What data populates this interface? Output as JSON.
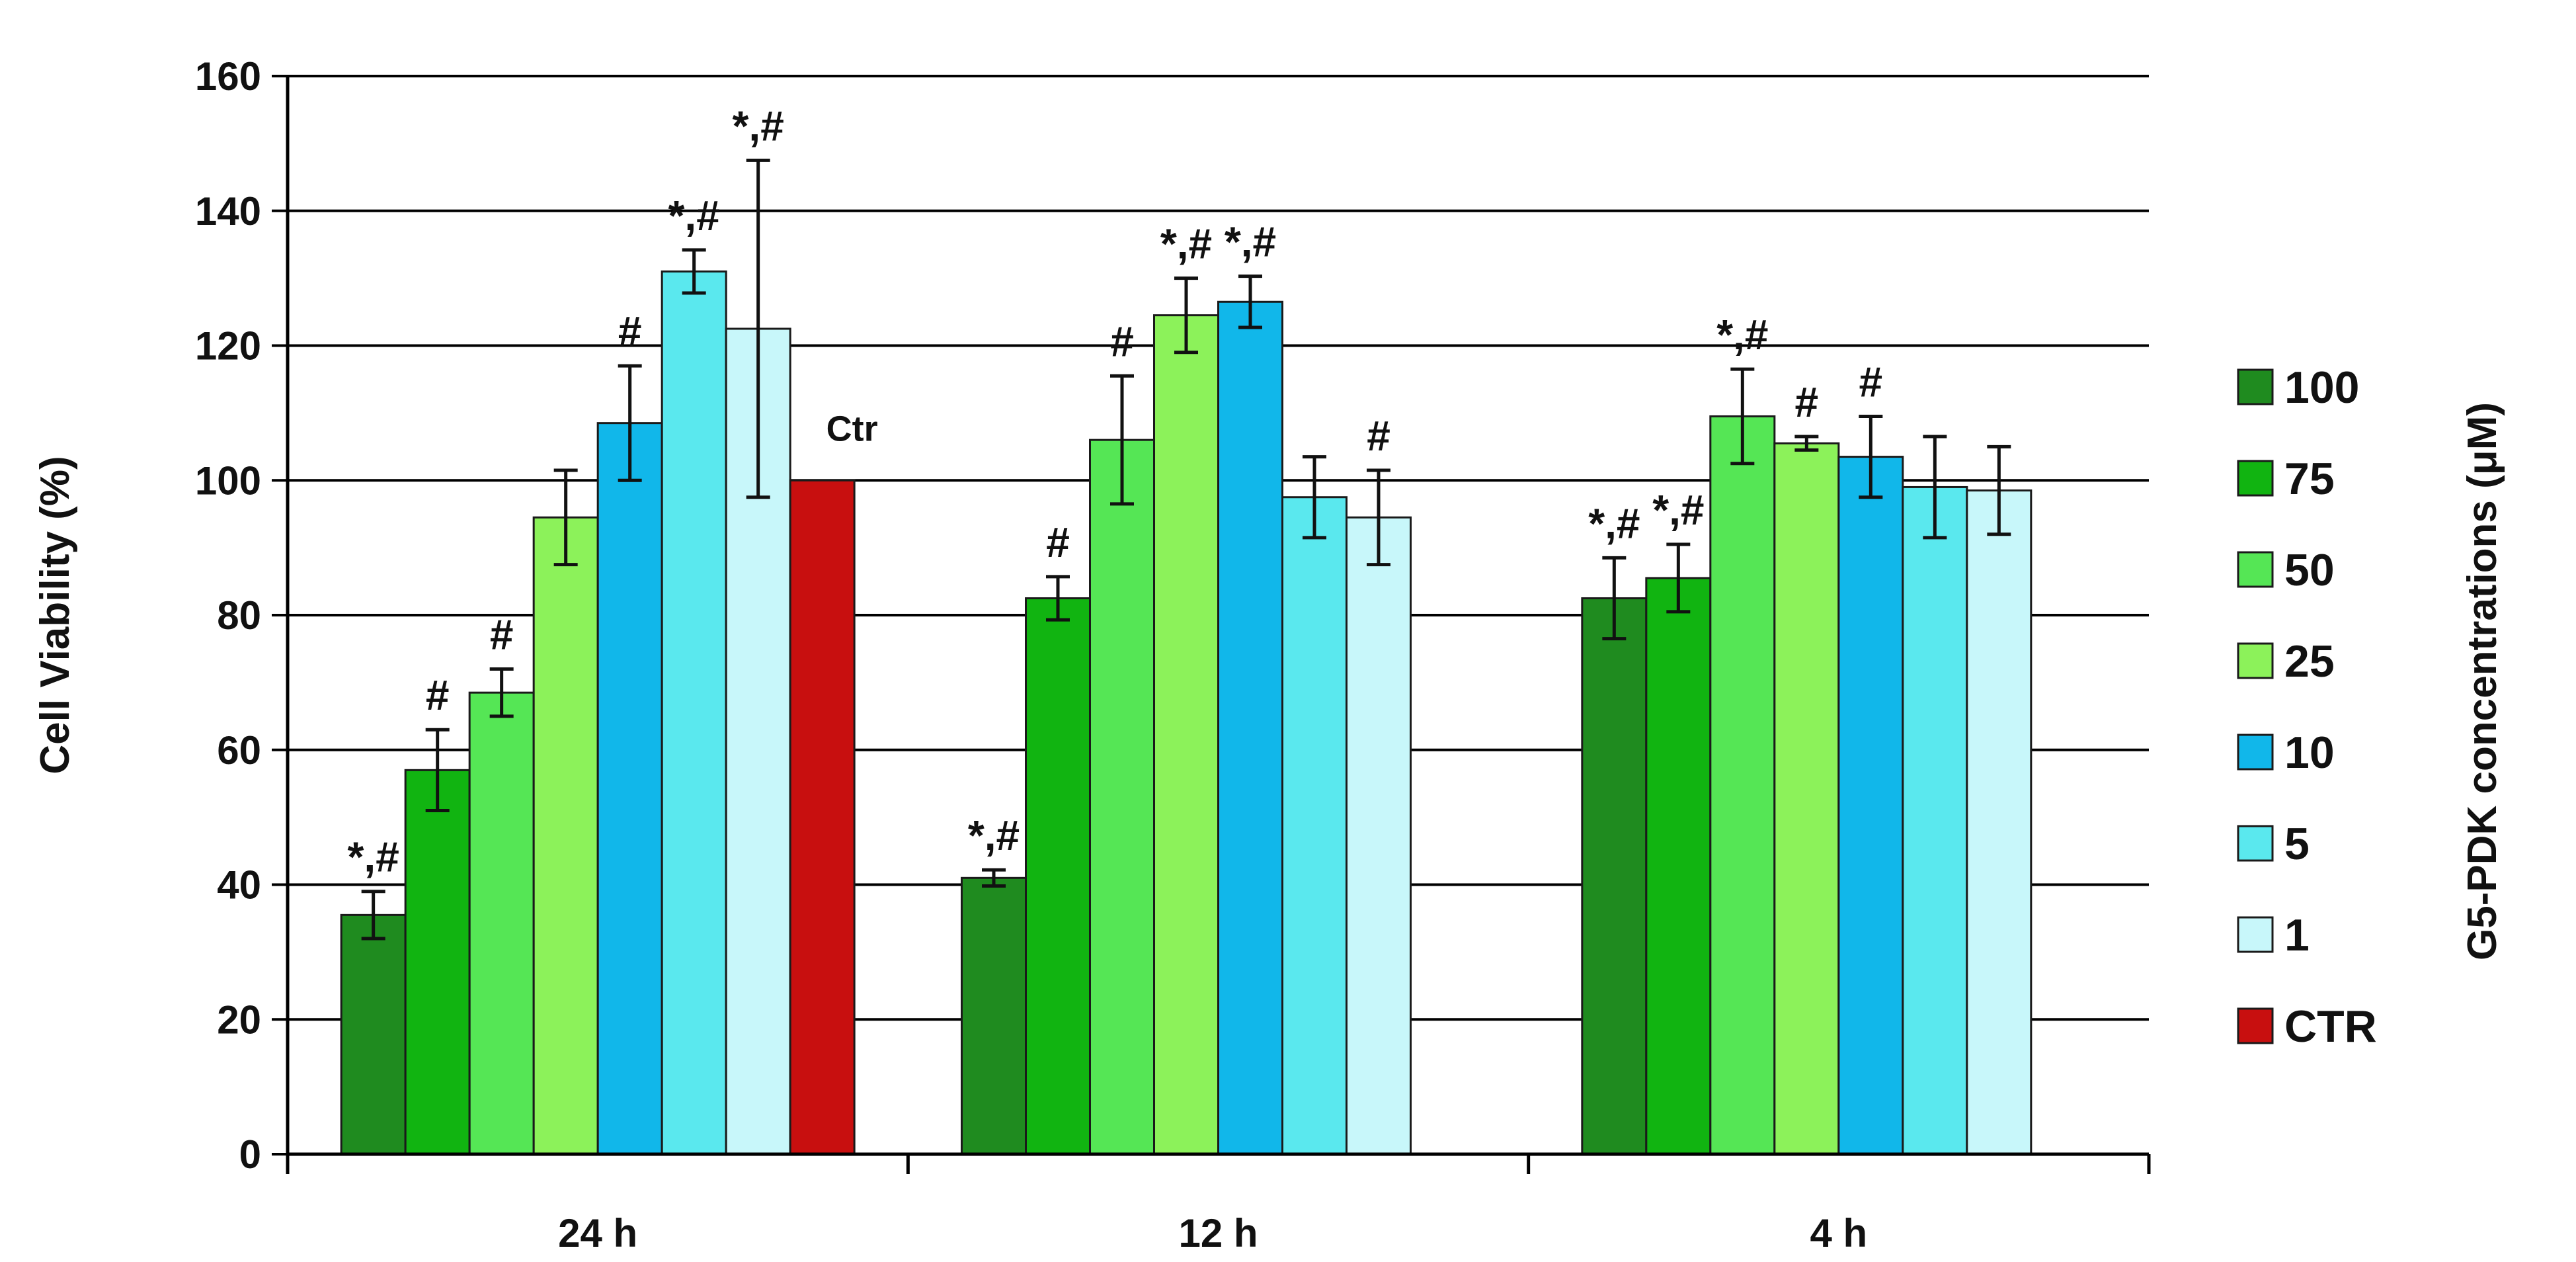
{
  "chart_data": {
    "type": "bar",
    "title": "",
    "xlabel": "",
    "ylabel": "Cell Viability (%)",
    "ylim": [
      0,
      160
    ],
    "yticks": [
      0,
      20,
      40,
      60,
      80,
      100,
      120,
      140,
      160
    ],
    "grid": true,
    "legend_title": "G5-PDK concentrations (μM)",
    "legend_position": "right",
    "categories": [
      "24 h",
      "12 h",
      "4 h"
    ],
    "series": [
      {
        "name": "100",
        "color": "#1f8b1f",
        "values": [
          35.5,
          41,
          82.5
        ],
        "errors": [
          3.5,
          1.2,
          6
        ],
        "labels": [
          "*,#",
          "*,#",
          "*,#"
        ]
      },
      {
        "name": "75",
        "color": "#11b411",
        "values": [
          57,
          82.5,
          85.5
        ],
        "errors": [
          6,
          3.2,
          5
        ],
        "labels": [
          "#",
          "#",
          "*,#"
        ]
      },
      {
        "name": "50",
        "color": "#55e655",
        "values": [
          68.5,
          106,
          109.5
        ],
        "errors": [
          3.5,
          9.5,
          7
        ],
        "labels": [
          "#",
          "#",
          "*,#"
        ]
      },
      {
        "name": "25",
        "color": "#8cf25a",
        "values": [
          94.5,
          124.5,
          105.5
        ],
        "errors": [
          7,
          5.5,
          1
        ],
        "labels": [
          "",
          "*,#",
          "#"
        ]
      },
      {
        "name": "10",
        "color": "#11b7ea",
        "values": [
          108.5,
          126.5,
          103.5
        ],
        "errors": [
          8.5,
          3.8,
          6
        ],
        "labels": [
          "#",
          "*,#",
          "#"
        ]
      },
      {
        "name": "5",
        "color": "#5ae8ee",
        "values": [
          131,
          97.5,
          99
        ],
        "errors": [
          3.2,
          6,
          7.5
        ],
        "labels": [
          "*,#",
          "",
          ""
        ]
      },
      {
        "name": "1",
        "color": "#c8f7fa",
        "values": [
          122.5,
          94.5,
          98.5
        ],
        "errors": [
          25,
          7,
          6.5
        ],
        "labels": [
          "*,#",
          "#",
          ""
        ]
      },
      {
        "name": "CTR",
        "color": "#c80f0f",
        "values": [
          100,
          null,
          null
        ],
        "errors": [
          0,
          null,
          null
        ],
        "labels": [
          "Ctr",
          "",
          ""
        ]
      }
    ]
  }
}
